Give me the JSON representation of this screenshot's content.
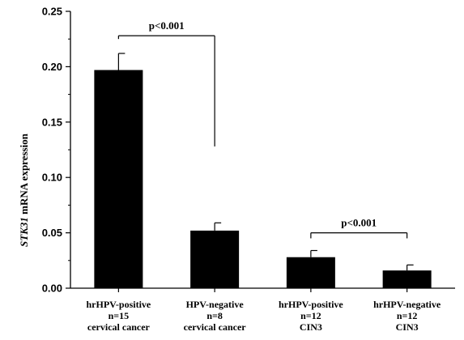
{
  "chart_data": {
    "type": "bar",
    "ylabel_gene": "STK31",
    "ylabel_rest": " mRNA expression",
    "ylim": [
      0,
      0.25
    ],
    "yticks": [
      0.0,
      0.05,
      0.1,
      0.15,
      0.2,
      0.25
    ],
    "ytick_labels": [
      "0.00",
      "0.05",
      "0.10",
      "0.15",
      "0.20",
      "0.25"
    ],
    "categories": [
      [
        "hrHPV-positive",
        "n=15",
        "cervical cancer"
      ],
      [
        "HPV-negative",
        "n=8",
        "cervical cancer"
      ],
      [
        "hrHPV-positive",
        "n=12",
        "CIN3"
      ],
      [
        "hrHPV-negative",
        "n=12",
        "CIN3"
      ]
    ],
    "values": [
      0.197,
      0.052,
      0.028,
      0.016
    ],
    "errors": [
      0.015,
      0.007,
      0.006,
      0.005
    ],
    "bar_color": "#000000",
    "annotations": [
      {
        "text": "p<0.001",
        "from": 0,
        "to": 1,
        "level": 0.228,
        "left_drop": 0.225,
        "right_drop": 0.128
      },
      {
        "text": "p<0.001",
        "from": 2,
        "to": 3,
        "level": 0.05,
        "left_drop": 0.045,
        "right_drop": 0.045
      }
    ]
  }
}
